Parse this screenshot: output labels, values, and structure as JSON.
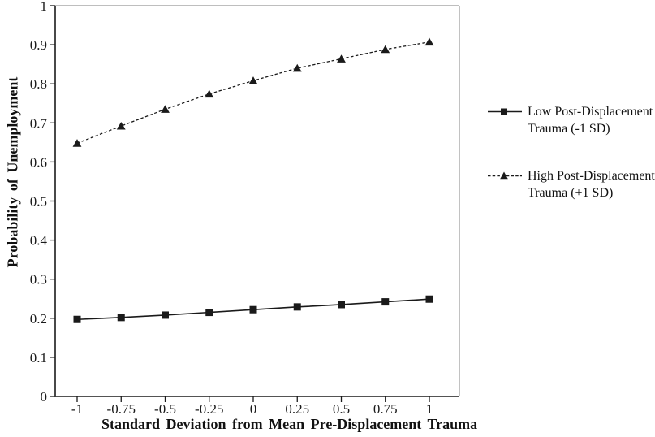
{
  "figure": {
    "background_color": "#ffffff",
    "axis_color": "#1a1a1a",
    "frame_color": "#a9a9a9"
  },
  "chart_data": {
    "type": "line",
    "title": "",
    "xlabel": "Standard Deviation from Mean Pre-Displacement Trauma",
    "ylabel": "Probability of Unemployment",
    "x": [
      -1,
      -0.75,
      -0.5,
      -0.25,
      0,
      0.25,
      0.5,
      0.75,
      1
    ],
    "x_tick_labels": [
      "-1",
      "-0.75",
      "-0.5",
      "-0.25",
      "0",
      "0.25",
      "0.5",
      "0.75",
      "1"
    ],
    "y_ticks": [
      0,
      0.1,
      0.2,
      0.3,
      0.4,
      0.5,
      0.6,
      0.7,
      0.8,
      0.9,
      1
    ],
    "y_tick_labels": [
      "0",
      "0.1",
      "0.2",
      "0.3",
      "0.4",
      "0.5",
      "0.6",
      "0.7",
      "0.8",
      "0.9",
      "1"
    ],
    "xlim": [
      -1.125,
      1.17
    ],
    "ylim": [
      0,
      1
    ],
    "grid": false,
    "legend_position": "right",
    "series": [
      {
        "name": "Low Post-Displacement Trauma (-1 SD)",
        "label_lines": [
          "Low Post-Displacement",
          "Trauma (-1 SD)"
        ],
        "marker": "square",
        "line_style": "solid",
        "color": "#1a1a1a",
        "values": [
          0.197,
          0.202,
          0.208,
          0.215,
          0.222,
          0.229,
          0.235,
          0.242,
          0.249
        ]
      },
      {
        "name": "High Post-Displacement Trauma (+1 SD)",
        "label_lines": [
          "High Post-Displacement",
          "Trauma (+1 SD)"
        ],
        "marker": "triangle",
        "line_style": "dashed",
        "color": "#1a1a1a",
        "values": [
          0.648,
          0.692,
          0.735,
          0.774,
          0.808,
          0.84,
          0.864,
          0.888,
          0.907
        ]
      }
    ]
  }
}
